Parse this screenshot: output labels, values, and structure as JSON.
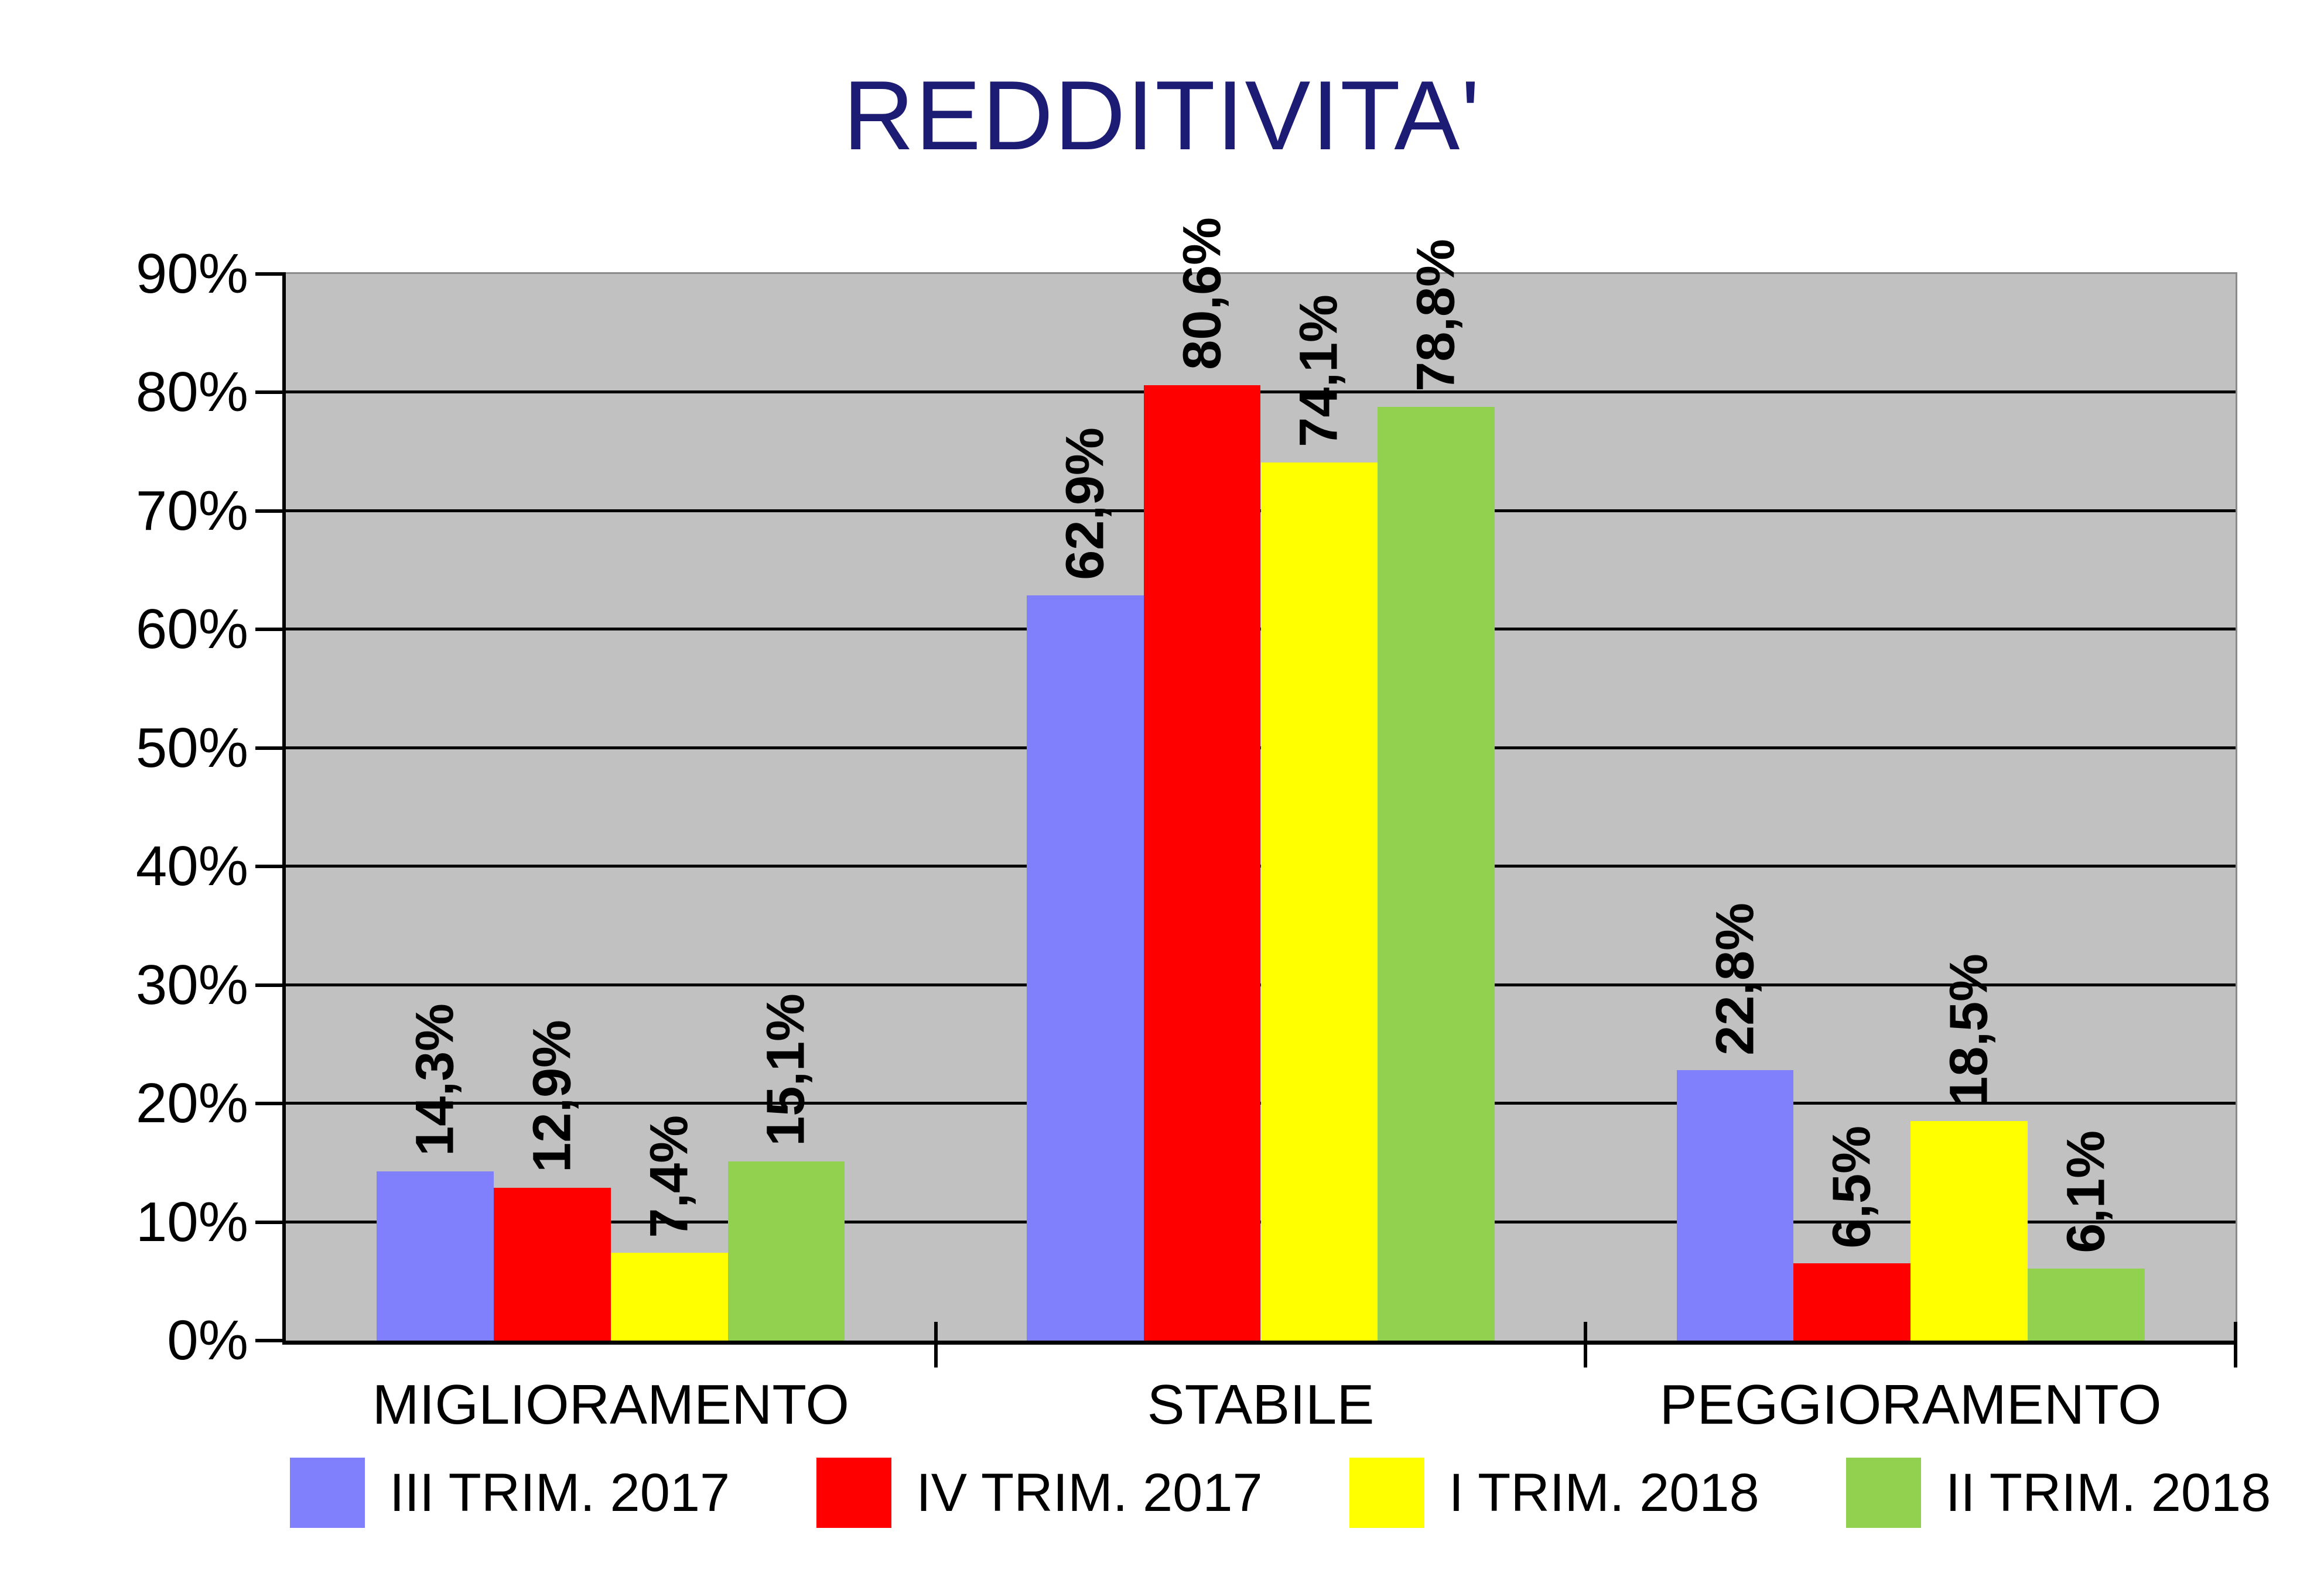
{
  "title": {
    "text": "REDDITIVITA'",
    "color": "#1c1c74"
  },
  "chart_data": {
    "type": "bar",
    "title": "REDDITIVITA'",
    "categories": [
      "MIGLIORAMENTO",
      "STABILE",
      "PEGGIORAMENTO"
    ],
    "series": [
      {
        "name": "III TRIM. 2017",
        "color": "#8080FC",
        "values": [
          14.3,
          62.9,
          22.8
        ],
        "labels": [
          "14,3%",
          "62,9%",
          "22,8%"
        ]
      },
      {
        "name": "IV TRIM. 2017",
        "color": "#FF0000",
        "values": [
          12.9,
          80.6,
          6.5
        ],
        "labels": [
          "12,9%",
          "80,6%",
          "6,5%"
        ]
      },
      {
        "name": "I TRIM. 2018",
        "color": "#FFFF00",
        "values": [
          7.4,
          74.1,
          18.5
        ],
        "labels": [
          "7,4%",
          "74,1%",
          "18,5%"
        ]
      },
      {
        "name": "II TRIM. 2018",
        "color": "#92D050",
        "values": [
          15.1,
          78.8,
          6.1
        ],
        "labels": [
          "15,1%",
          "78,8%",
          "6,1%"
        ]
      }
    ],
    "ylim": [
      0,
      90
    ],
    "ytick_step": 10,
    "ytick_labels": [
      "0%",
      "10%",
      "20%",
      "30%",
      "40%",
      "50%",
      "60%",
      "70%",
      "80%",
      "90%"
    ],
    "grid": true,
    "grid_color": "#000000",
    "plot_bg": "#c1c1c1",
    "legend_position": "bottom"
  }
}
